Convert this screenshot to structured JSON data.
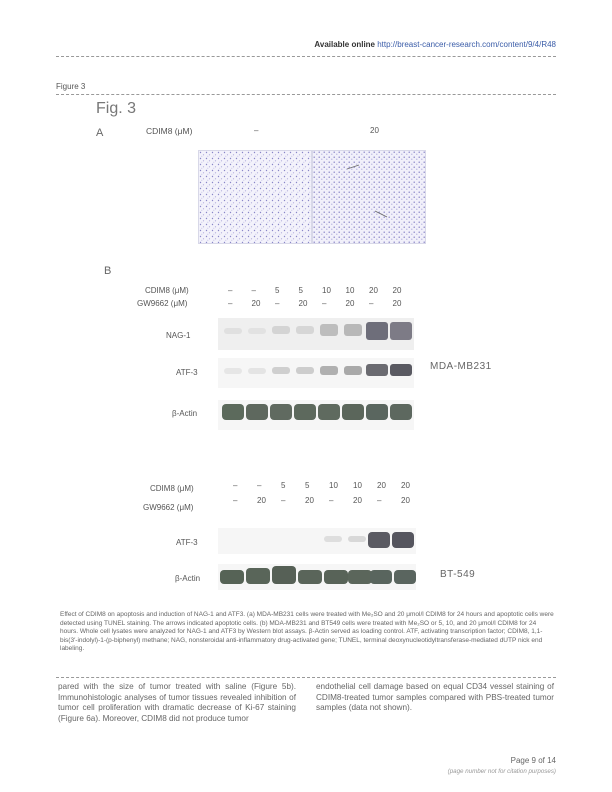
{
  "header": {
    "available": "Available online",
    "url": "http://breast-cancer-research.com/content/9/4/R48"
  },
  "figure_label": "Figure 3",
  "fig_title": "Fig. 3",
  "panel_a": {
    "letter": "A",
    "label": "CDIM8 (μM)",
    "conditions": [
      "–",
      "20"
    ]
  },
  "panel_b": {
    "letter": "B",
    "row1_label": "CDIM8 (μM)",
    "row2_label": "GW9662 (μM)",
    "cdim_values": [
      "–",
      "–",
      "5",
      "5",
      "10",
      "10",
      "20",
      "20"
    ],
    "gw_values": [
      "–",
      "20",
      "–",
      "20",
      "–",
      "20",
      "–",
      "20"
    ],
    "blots": [
      "NAG-1",
      "ATF-3",
      "β-Actin"
    ],
    "cell_line": "MDA-MB231"
  },
  "panel_c": {
    "row1_label": "CDIM8 (μM)",
    "row2_label": "GW9662 (μM)",
    "cdim_values": [
      "–",
      "–",
      "5",
      "5",
      "10",
      "10",
      "20",
      "20"
    ],
    "gw_values": [
      "–",
      "20",
      "–",
      "20",
      "–",
      "20",
      "–",
      "20"
    ],
    "blots": [
      "ATF-3",
      "β-Actin"
    ],
    "cell_line": "BT-549"
  },
  "caption": "Effect of CDIM8 on apoptosis and induction of NAG-1 and ATF3. (a) MDA-MB231 cells were treated with Me₂SO and 20 μmol/l CDIM8 for 24 hours and apoptotic cells were detected using TUNEL staining. The arrows indicated apoptotic cells. (b) MDA-MB231 and BT549 cells were treated with Me₂SO or 5, 10, and 20 μmol/l CDIM8 for 24 hours. Whole cell lysates were analyzed for NAG-1 and ATF3 by Western blot assays. β-Actin served as loading control. ATF, activating transcription factor; CDIM8, 1,1-bis(3′-indolyl)-1-(p-biphenyl) methane; NAG, nonsteroidal anti-inflammatory drug-activated gene; TUNEL, terminal deoxynucleotidyltransferase-mediated dUTP nick end labeling.",
  "body_left": "pared with the size of tumor treated with saline (Figure 5b). Immunohistologic analyses of tumor tissues revealed inhibition of tumor cell proliferation with dramatic decrease of Ki-67 staining (Figure 6a). Moreover, CDIM8 did not produce tumor",
  "body_right": "endothelial cell damage based on equal CD34 vessel staining of CDIM8-treated tumor samples compared with PBS-treated tumor samples (data not shown).",
  "footer": {
    "page": "Page 9 of 14",
    "note": "(page number not for citation purposes)"
  }
}
